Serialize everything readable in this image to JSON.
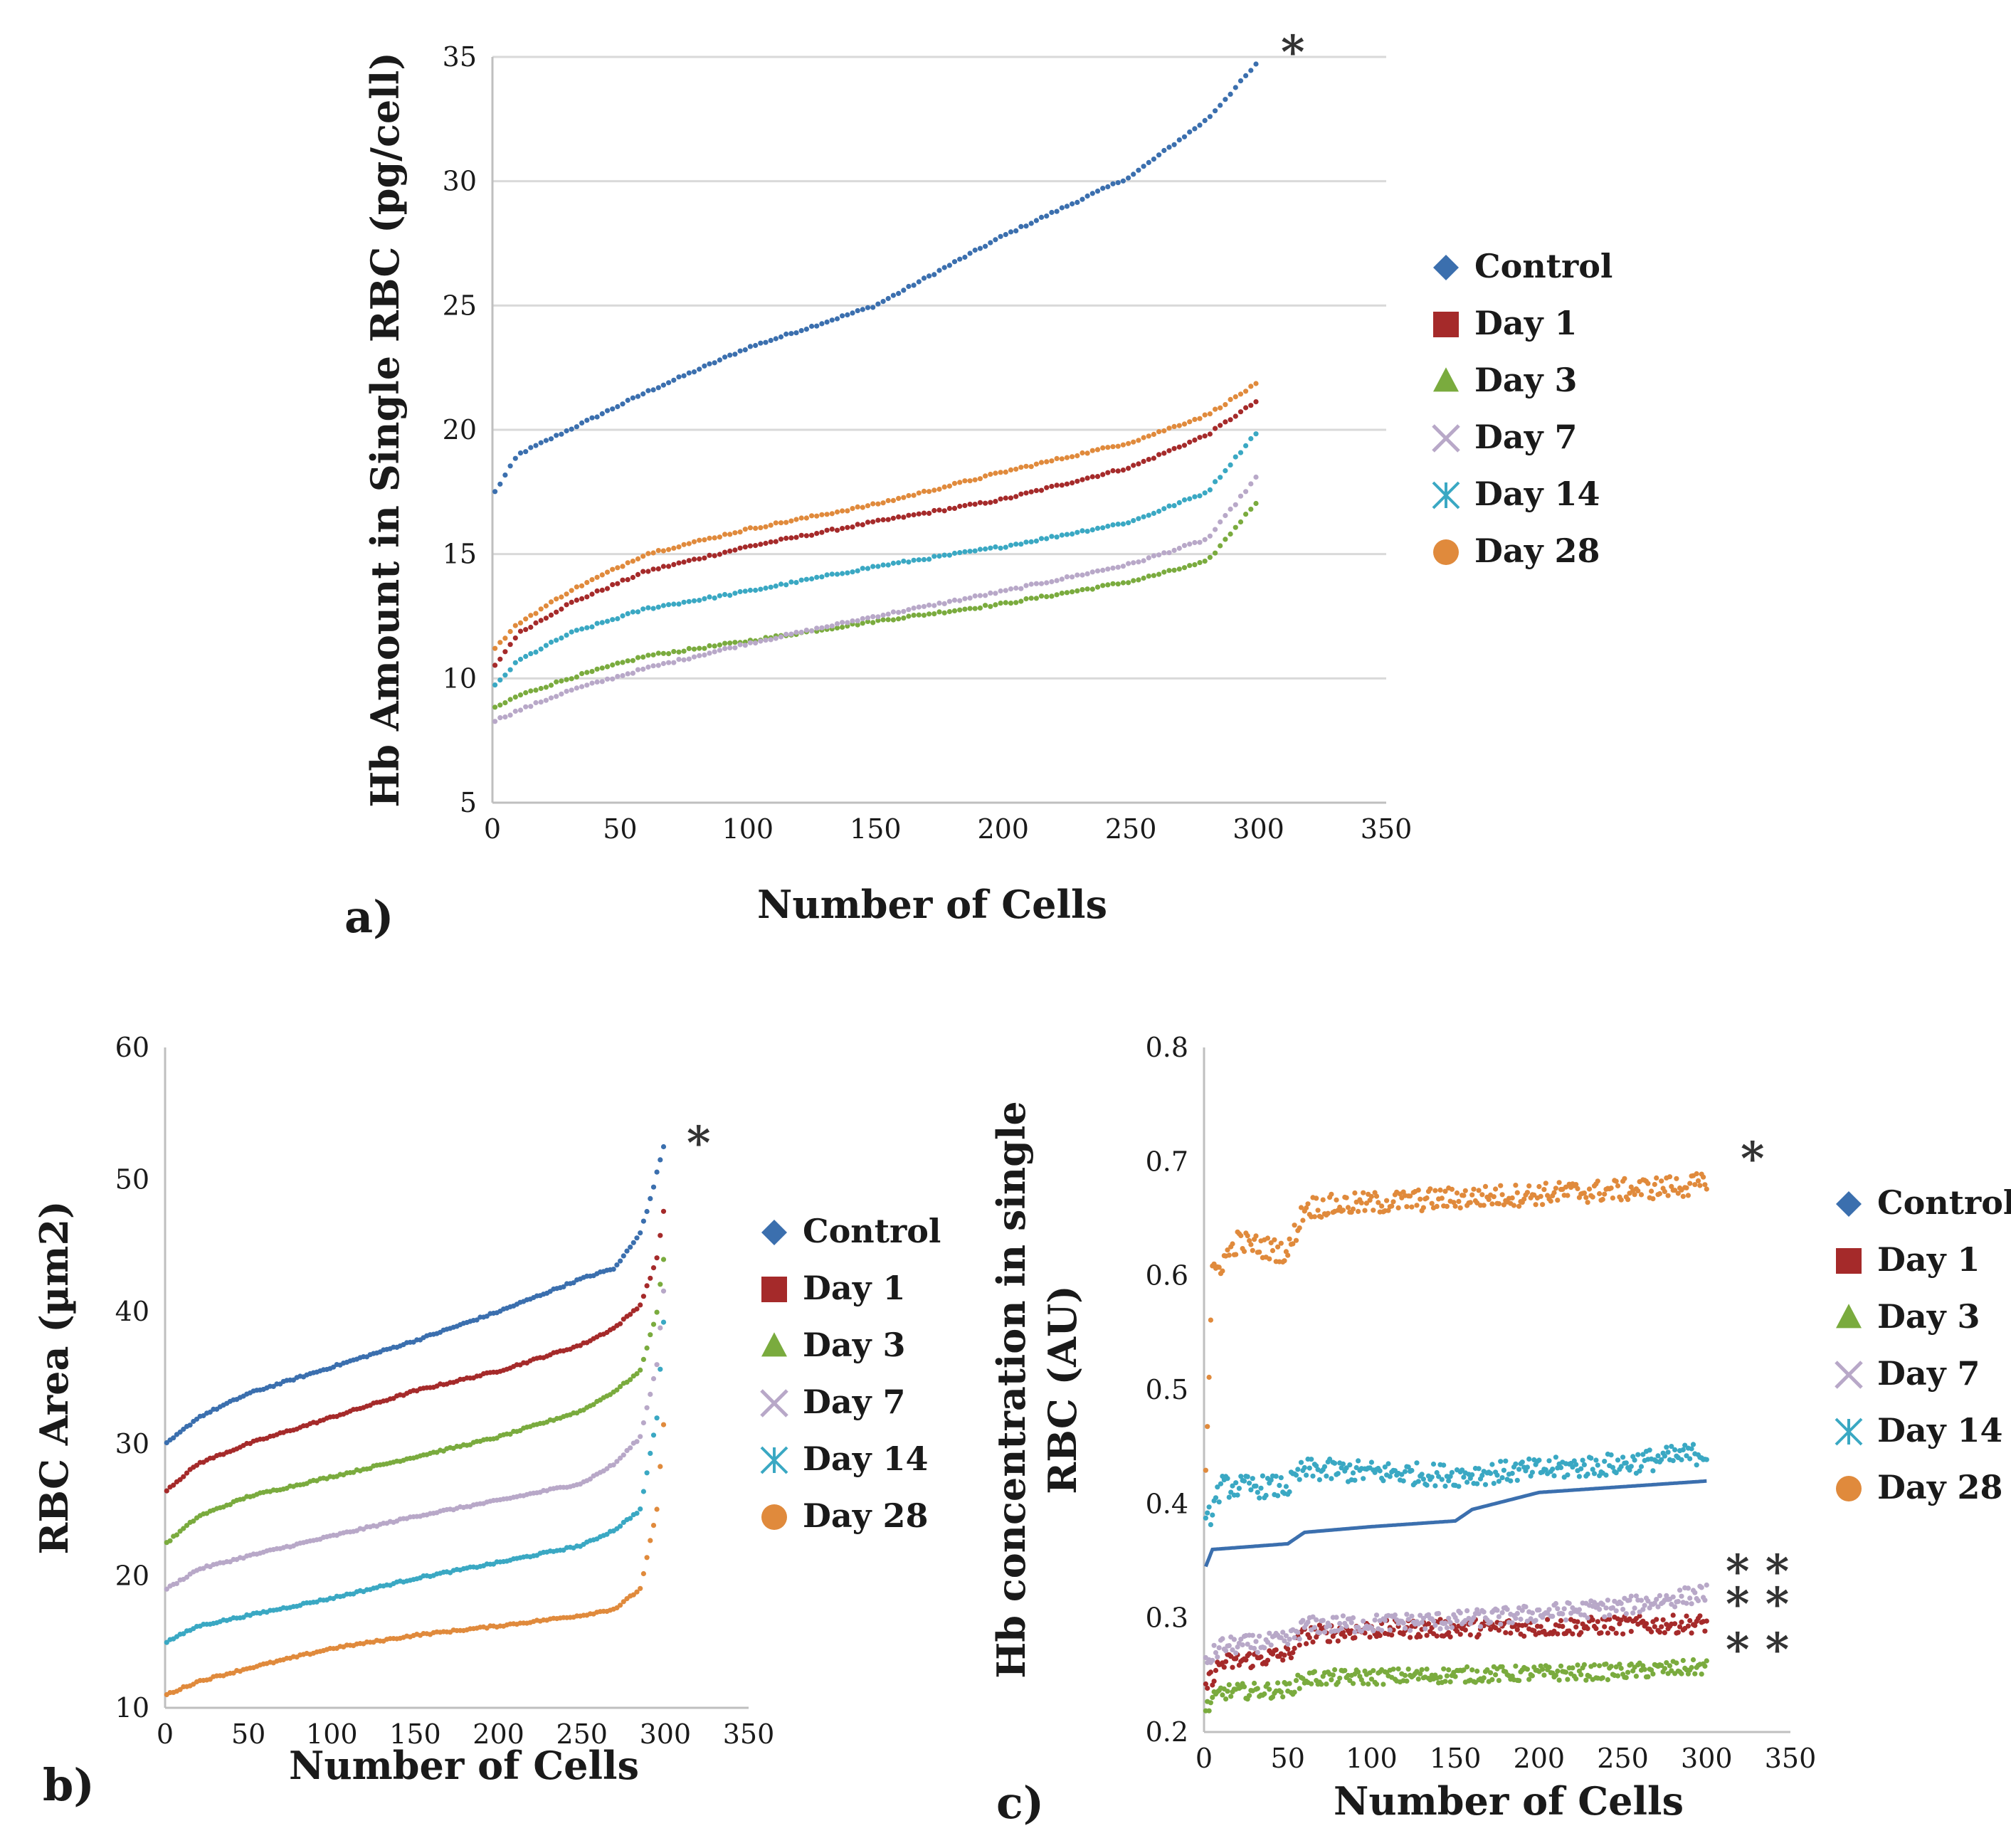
{
  "figure": {
    "legend": [
      {
        "label": "Control",
        "color": "#3b6fae",
        "marker": "diamond"
      },
      {
        "label": "Day 1",
        "color": "#a52a2a",
        "marker": "square"
      },
      {
        "label": "Day 3",
        "color": "#7aab3e",
        "marker": "triangle"
      },
      {
        "label": "Day 7",
        "color": "#b8a8c8",
        "marker": "cross"
      },
      {
        "label": "Day 14",
        "color": "#3aa8c3",
        "marker": "asterisk"
      },
      {
        "label": "Day 28",
        "color": "#e08a3c",
        "marker": "circle"
      }
    ]
  },
  "chart_data": [
    {
      "id": "a",
      "panel_label": "a)",
      "type": "scatter",
      "xlabel": "Number of Cells",
      "ylabel": "Hb Amount in Single RBC (pg/cell)",
      "xlim": [
        0,
        350
      ],
      "ylim": [
        5,
        35
      ],
      "xticks": [
        0,
        50,
        100,
        150,
        200,
        250,
        300,
        350
      ],
      "yticks": [
        5,
        10,
        15,
        20,
        25,
        30,
        35
      ],
      "gridlines": true,
      "n_points": 300,
      "annotations": [
        {
          "text": "*",
          "x": 305,
          "y": 35
        }
      ],
      "series": [
        {
          "name": "Control",
          "curve": [
            [
              1,
              17.5
            ],
            [
              10,
              19
            ],
            [
              30,
              20
            ],
            [
              60,
              21.5
            ],
            [
              100,
              23.3
            ],
            [
              150,
              25
            ],
            [
              200,
              27.8
            ],
            [
              250,
              30.2
            ],
            [
              280,
              32.5
            ],
            [
              300,
              34.8
            ]
          ]
        },
        {
          "name": "Day 1",
          "curve": [
            [
              1,
              10.5
            ],
            [
              10,
              11.8
            ],
            [
              30,
              13
            ],
            [
              60,
              14.3
            ],
            [
              100,
              15.3
            ],
            [
              150,
              16.3
            ],
            [
              200,
              17.2
            ],
            [
              250,
              18.5
            ],
            [
              280,
              19.8
            ],
            [
              300,
              21.2
            ]
          ]
        },
        {
          "name": "Day 3",
          "curve": [
            [
              1,
              8.8
            ],
            [
              10,
              9.3
            ],
            [
              30,
              10
            ],
            [
              60,
              10.9
            ],
            [
              100,
              11.5
            ],
            [
              150,
              12.3
            ],
            [
              200,
              13
            ],
            [
              250,
              13.9
            ],
            [
              280,
              14.7
            ],
            [
              300,
              17.2
            ]
          ]
        },
        {
          "name": "Day 7",
          "curve": [
            [
              1,
              8.3
            ],
            [
              10,
              8.7
            ],
            [
              30,
              9.5
            ],
            [
              60,
              10.4
            ],
            [
              100,
              11.4
            ],
            [
              150,
              12.5
            ],
            [
              200,
              13.5
            ],
            [
              250,
              14.6
            ],
            [
              280,
              15.6
            ],
            [
              300,
              18.2
            ]
          ]
        },
        {
          "name": "Day 14",
          "curve": [
            [
              1,
              9.7
            ],
            [
              10,
              10.7
            ],
            [
              30,
              11.8
            ],
            [
              60,
              12.8
            ],
            [
              100,
              13.5
            ],
            [
              150,
              14.5
            ],
            [
              200,
              15.3
            ],
            [
              250,
              16.3
            ],
            [
              280,
              17.5
            ],
            [
              300,
              20
            ]
          ]
        },
        {
          "name": "Day 28",
          "curve": [
            [
              1,
              11.2
            ],
            [
              10,
              12.2
            ],
            [
              30,
              13.5
            ],
            [
              60,
              15
            ],
            [
              100,
              16
            ],
            [
              150,
              17
            ],
            [
              200,
              18.3
            ],
            [
              250,
              19.5
            ],
            [
              280,
              20.6
            ],
            [
              300,
              21.9
            ]
          ]
        }
      ]
    },
    {
      "id": "b",
      "panel_label": "b)",
      "type": "scatter",
      "xlabel": "Number of Cells",
      "ylabel": "RBC  Area (µm2)",
      "xlim": [
        0,
        350
      ],
      "ylim": [
        10,
        60
      ],
      "xticks": [
        0,
        50,
        100,
        150,
        200,
        250,
        300,
        350
      ],
      "yticks": [
        10,
        20,
        30,
        40,
        50,
        60
      ],
      "gridlines": false,
      "n_points": 300,
      "annotations": [
        {
          "text": "*",
          "x": 305,
          "y": 52.5
        }
      ],
      "series": [
        {
          "name": "Control",
          "curve": [
            [
              1,
              30
            ],
            [
              20,
              32
            ],
            [
              50,
              33.8
            ],
            [
              100,
              35.8
            ],
            [
              150,
              37.8
            ],
            [
              200,
              40
            ],
            [
              250,
              42.5
            ],
            [
              270,
              43.3
            ],
            [
              285,
              46
            ],
            [
              290,
              48
            ],
            [
              300,
              53
            ]
          ]
        },
        {
          "name": "Day 1",
          "curve": [
            [
              1,
              26.5
            ],
            [
              20,
              28.5
            ],
            [
              50,
              30
            ],
            [
              100,
              32
            ],
            [
              150,
              34
            ],
            [
              200,
              35.5
            ],
            [
              250,
              37.5
            ],
            [
              270,
              38.8
            ],
            [
              285,
              40.5
            ],
            [
              295,
              44
            ],
            [
              300,
              48.5
            ]
          ]
        },
        {
          "name": "Day 3",
          "curve": [
            [
              1,
              22.5
            ],
            [
              20,
              24.5
            ],
            [
              50,
              26
            ],
            [
              100,
              27.5
            ],
            [
              150,
              29
            ],
            [
              200,
              30.5
            ],
            [
              250,
              32.5
            ],
            [
              270,
              34
            ],
            [
              285,
              35.5
            ],
            [
              295,
              40
            ],
            [
              300,
              45
            ]
          ]
        },
        {
          "name": "Day 7",
          "curve": [
            [
              1,
              19
            ],
            [
              20,
              20.5
            ],
            [
              50,
              21.5
            ],
            [
              100,
              23
            ],
            [
              150,
              24.5
            ],
            [
              200,
              25.7
            ],
            [
              250,
              27
            ],
            [
              270,
              28.5
            ],
            [
              285,
              30.5
            ],
            [
              295,
              36
            ],
            [
              300,
              43
            ]
          ]
        },
        {
          "name": "Day 14",
          "curve": [
            [
              1,
              15
            ],
            [
              20,
              16.2
            ],
            [
              50,
              17
            ],
            [
              100,
              18.3
            ],
            [
              150,
              19.8
            ],
            [
              200,
              21
            ],
            [
              250,
              22.3
            ],
            [
              270,
              23.5
            ],
            [
              285,
              25
            ],
            [
              295,
              32
            ],
            [
              300,
              41
            ]
          ]
        },
        {
          "name": "Day 28",
          "curve": [
            [
              1,
              11
            ],
            [
              20,
              12
            ],
            [
              50,
              13
            ],
            [
              100,
              14.5
            ],
            [
              150,
              15.5
            ],
            [
              200,
              16.2
            ],
            [
              250,
              17
            ],
            [
              270,
              17.5
            ],
            [
              285,
              19
            ],
            [
              295,
              25
            ],
            [
              300,
              33
            ]
          ]
        }
      ]
    },
    {
      "id": "c",
      "panel_label": "c)",
      "type": "scatter",
      "xlabel": "Number of Cells",
      "ylabel": "Hb concentration in single RBC (AU)",
      "ylabel_lines": [
        "Hb concentration in single",
        "RBC (AU)"
      ],
      "xlim": [
        0,
        350
      ],
      "ylim": [
        0.2,
        0.8
      ],
      "xticks": [
        0,
        50,
        100,
        150,
        200,
        250,
        300,
        350
      ],
      "yticks": [
        0.2,
        0.3,
        0.4,
        0.5,
        0.6,
        0.7,
        0.8
      ],
      "gridlines": false,
      "n_points": 300,
      "annotations": [
        {
          "text": "*",
          "x": 308,
          "y": 0.685
        },
        {
          "text": "* *",
          "x": 305,
          "y": 0.322
        },
        {
          "text": "* *",
          "x": 305,
          "y": 0.295
        },
        {
          "text": "* *",
          "x": 305,
          "y": 0.257
        }
      ],
      "series": [
        {
          "name": "Control",
          "style": "line",
          "curve": [
            [
              1,
              0.345
            ],
            [
              5,
              0.36
            ],
            [
              50,
              0.365
            ],
            [
              60,
              0.375
            ],
            [
              100,
              0.38
            ],
            [
              150,
              0.385
            ],
            [
              160,
              0.395
            ],
            [
              200,
              0.41
            ],
            [
              250,
              0.415
            ],
            [
              300,
              0.42
            ]
          ]
        },
        {
          "name": "Day 1",
          "jitter": 0.008,
          "curve": [
            [
              1,
              0.24
            ],
            [
              10,
              0.26
            ],
            [
              50,
              0.268
            ],
            [
              60,
              0.285
            ],
            [
              100,
              0.29
            ],
            [
              200,
              0.292
            ],
            [
              300,
              0.295
            ]
          ]
        },
        {
          "name": "Day 3",
          "jitter": 0.007,
          "curve": [
            [
              1,
              0.22
            ],
            [
              10,
              0.235
            ],
            [
              50,
              0.237
            ],
            [
              60,
              0.247
            ],
            [
              150,
              0.25
            ],
            [
              250,
              0.253
            ],
            [
              300,
              0.257
            ]
          ]
        },
        {
          "name": "Day 7",
          "jitter": 0.008,
          "curve": [
            [
              1,
              0.26
            ],
            [
              10,
              0.275
            ],
            [
              50,
              0.28
            ],
            [
              60,
              0.293
            ],
            [
              150,
              0.298
            ],
            [
              250,
              0.31
            ],
            [
              300,
              0.322
            ]
          ]
        },
        {
          "name": "Day 14",
          "jitter": 0.01,
          "curve": [
            [
              1,
              0.38
            ],
            [
              10,
              0.415
            ],
            [
              50,
              0.415
            ],
            [
              60,
              0.43
            ],
            [
              150,
              0.425
            ],
            [
              250,
              0.435
            ],
            [
              300,
              0.445
            ]
          ]
        },
        {
          "name": "Day 28",
          "jitter": 0.01,
          "curve": [
            [
              1,
              0.43
            ],
            [
              5,
              0.6
            ],
            [
              20,
              0.63
            ],
            [
              50,
              0.62
            ],
            [
              60,
              0.66
            ],
            [
              150,
              0.668
            ],
            [
              250,
              0.675
            ],
            [
              300,
              0.68
            ]
          ]
        }
      ]
    }
  ]
}
